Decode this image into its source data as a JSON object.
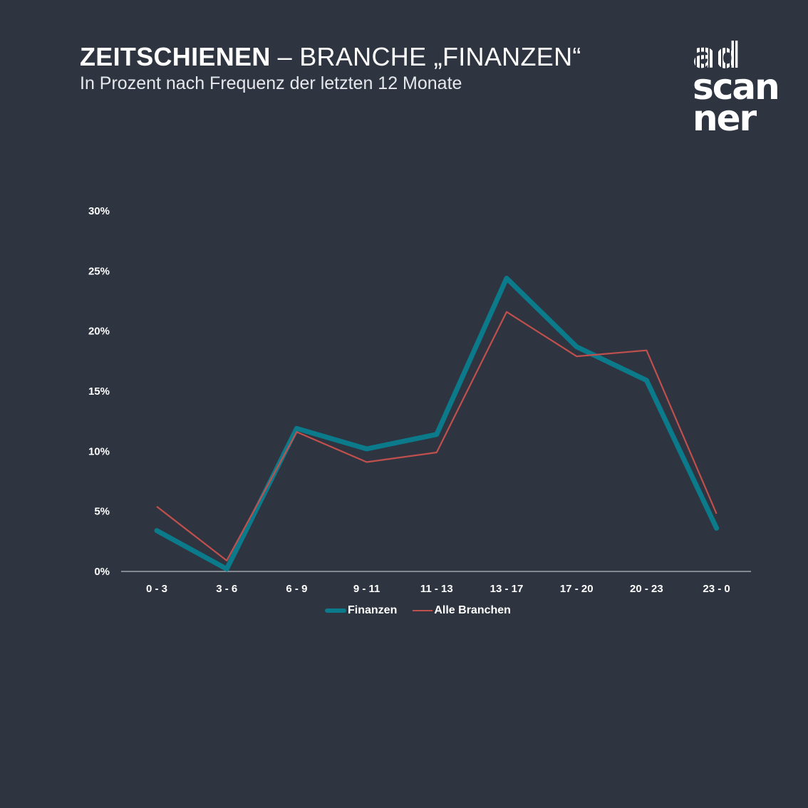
{
  "header": {
    "title_bold": "ZEITSCHIENEN",
    "title_rest": "– BRANCHE „FINANZEN“",
    "subtitle": "In Prozent nach Frequenz der letzten 12 Monate"
  },
  "logo": {
    "line1": "ad",
    "line2": "scan",
    "line3": "ner"
  },
  "colors": {
    "background": "#2e3440",
    "finanzen": "#0b7a8a",
    "alle_branchen": "#c0504d"
  },
  "chart_data": {
    "type": "line",
    "title": "ZEITSCHIENEN – BRANCHE „FINANZEN“",
    "subtitle": "In Prozent nach Frequenz der letzten 12 Monate",
    "xlabel": "",
    "ylabel": "",
    "categories": [
      "0 - 3",
      "3 - 6",
      "6 - 9",
      "9 - 11",
      "11 - 13",
      "13 - 17",
      "17 - 20",
      "20 - 23",
      "23 - 0"
    ],
    "series": [
      {
        "name": "Finanzen",
        "values": [
          3.4,
          0.2,
          11.9,
          10.2,
          11.4,
          24.4,
          18.7,
          15.9,
          3.6
        ]
      },
      {
        "name": "Alle Branchen",
        "values": [
          5.4,
          0.9,
          11.6,
          9.1,
          9.9,
          21.6,
          17.9,
          18.4,
          4.8
        ]
      }
    ],
    "ylim": [
      0,
      30
    ],
    "yticks": [
      0,
      5,
      10,
      15,
      20,
      25,
      30
    ],
    "ytick_labels": [
      "0%",
      "5%",
      "10%",
      "15%",
      "20%",
      "25%",
      "30%"
    ],
    "grid": false,
    "legend": "bottom-center"
  }
}
